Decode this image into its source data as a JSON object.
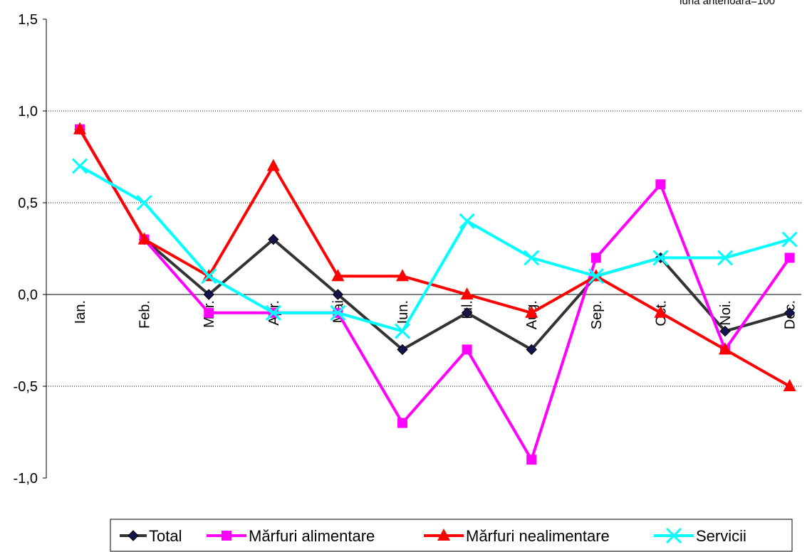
{
  "chart_data": {
    "type": "line",
    "note": "luna anterioară=100",
    "categories": [
      "Ian.",
      "Feb.",
      "Mar.",
      "Apr.",
      "Mai",
      "Iun.",
      "Iul.",
      "Aug.",
      "Sep.",
      "Oct.",
      "Noi.",
      "Dec."
    ],
    "series": [
      {
        "name": "Total",
        "color": "#333333",
        "marker": "diamond",
        "values": [
          0.9,
          0.3,
          0.0,
          0.3,
          0.0,
          -0.3,
          -0.1,
          -0.3,
          0.1,
          0.2,
          -0.2,
          -0.1
        ]
      },
      {
        "name": "Mărfuri alimentare",
        "color": "#ff00ff",
        "marker": "square",
        "values": [
          0.9,
          0.3,
          -0.1,
          -0.1,
          -0.1,
          -0.7,
          -0.3,
          -0.9,
          0.2,
          0.6,
          -0.3,
          0.2
        ]
      },
      {
        "name": "Mărfuri nealimentare",
        "color": "#ff0000",
        "marker": "triangle",
        "values": [
          0.9,
          0.3,
          0.1,
          0.7,
          0.1,
          0.1,
          0.0,
          -0.1,
          0.1,
          -0.1,
          -0.3,
          -0.5
        ]
      },
      {
        "name": "Servicii",
        "color": "#00ffff",
        "marker": "x",
        "values": [
          0.7,
          0.5,
          0.1,
          -0.1,
          -0.1,
          -0.2,
          0.4,
          0.2,
          0.1,
          0.2,
          0.2,
          0.3
        ]
      }
    ],
    "ylim": [
      -1.0,
      1.5
    ],
    "yticks": [
      {
        "value": -1.0,
        "label": "-1,0"
      },
      {
        "value": -0.5,
        "label": "-0,5"
      },
      {
        "value": 0,
        "label": "0,0"
      },
      {
        "value": 0.5,
        "label": "0,5"
      },
      {
        "value": 1.0,
        "label": "1,0"
      },
      {
        "value": 1.5,
        "label": "1,5"
      }
    ],
    "grid": true
  }
}
